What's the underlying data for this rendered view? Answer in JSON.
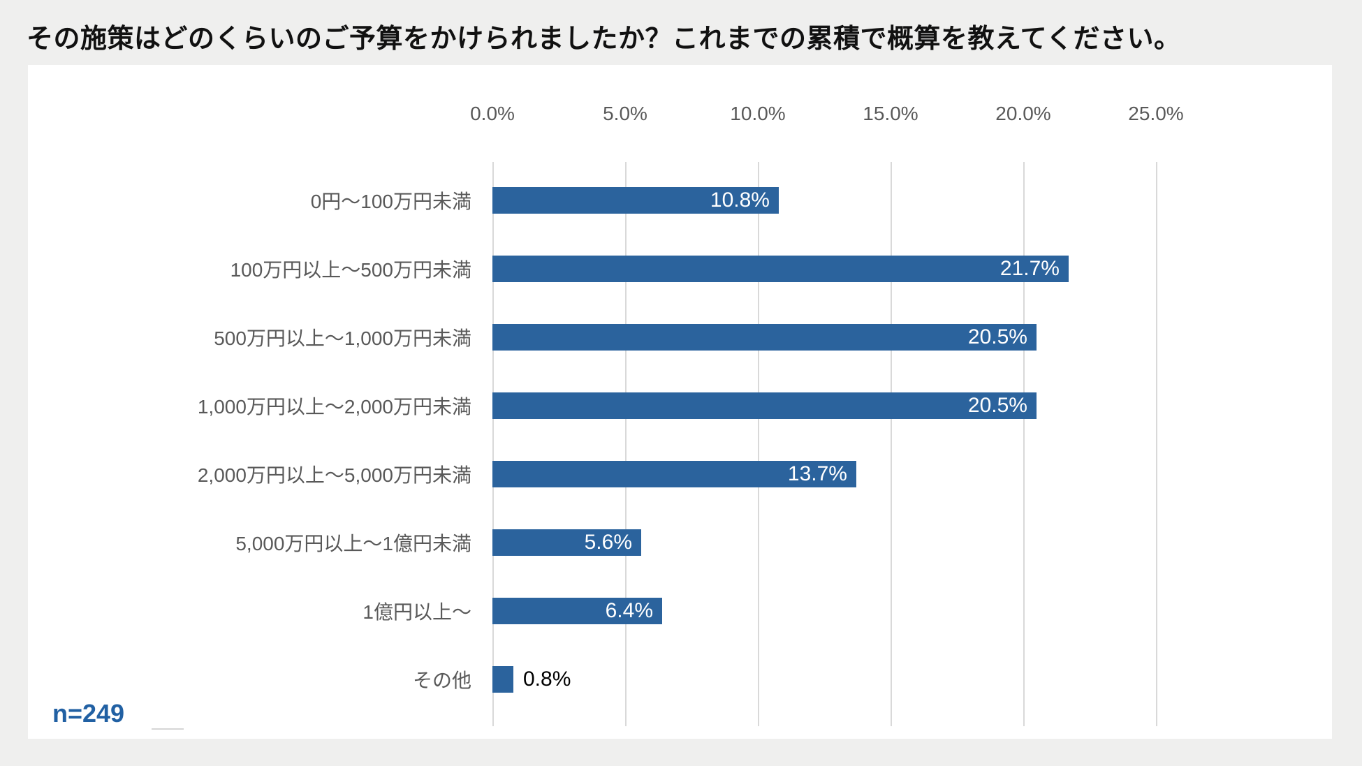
{
  "page": {
    "title": "その施策はどのくらいのご予算をかけられましたか？これまでの累積で概算を教えてください。",
    "sample_size_label": "n=249"
  },
  "colors": {
    "bar": "#2B639D",
    "page_background": "#EFEFEE",
    "card_background": "#FFFFFF",
    "gridline": "#D9D9D9",
    "axis_text": "#595959",
    "category_text": "#595959",
    "value_label_inside": "#FFFFFF",
    "value_label_outside": "#000000",
    "title_text": "#111111",
    "sample_text": "#2160A3"
  },
  "chart_data": {
    "type": "bar",
    "orientation": "horizontal",
    "title": "その施策はどのくらいのご予算をかけられましたか？これまでの累積で概算を教えてください。",
    "categories": [
      "0円〜100万円未満",
      "100万円以上〜500万円未満",
      "500万円以上〜1,000万円未満",
      "1,000万円以上〜2,000万円未満",
      "2,000万円以上〜5,000万円未満",
      "5,000万円以上〜1億円未満",
      "1億円以上〜",
      "その他"
    ],
    "values": [
      10.8,
      21.7,
      20.5,
      20.5,
      13.7,
      5.6,
      6.4,
      0.8
    ],
    "value_labels": [
      "10.8%",
      "21.7%",
      "20.5%",
      "20.5%",
      "13.7%",
      "5.6%",
      "6.4%",
      "0.8%"
    ],
    "x_axis": {
      "position": "top",
      "tick_labels": [
        "0.0%",
        "5.0%",
        "10.0%",
        "15.0%",
        "20.0%",
        "25.0%"
      ],
      "tick_values": [
        0,
        5,
        10,
        15,
        20,
        25
      ],
      "xlim": [
        0,
        25
      ]
    },
    "grid": true,
    "legend": false,
    "sample_size": 249
  }
}
